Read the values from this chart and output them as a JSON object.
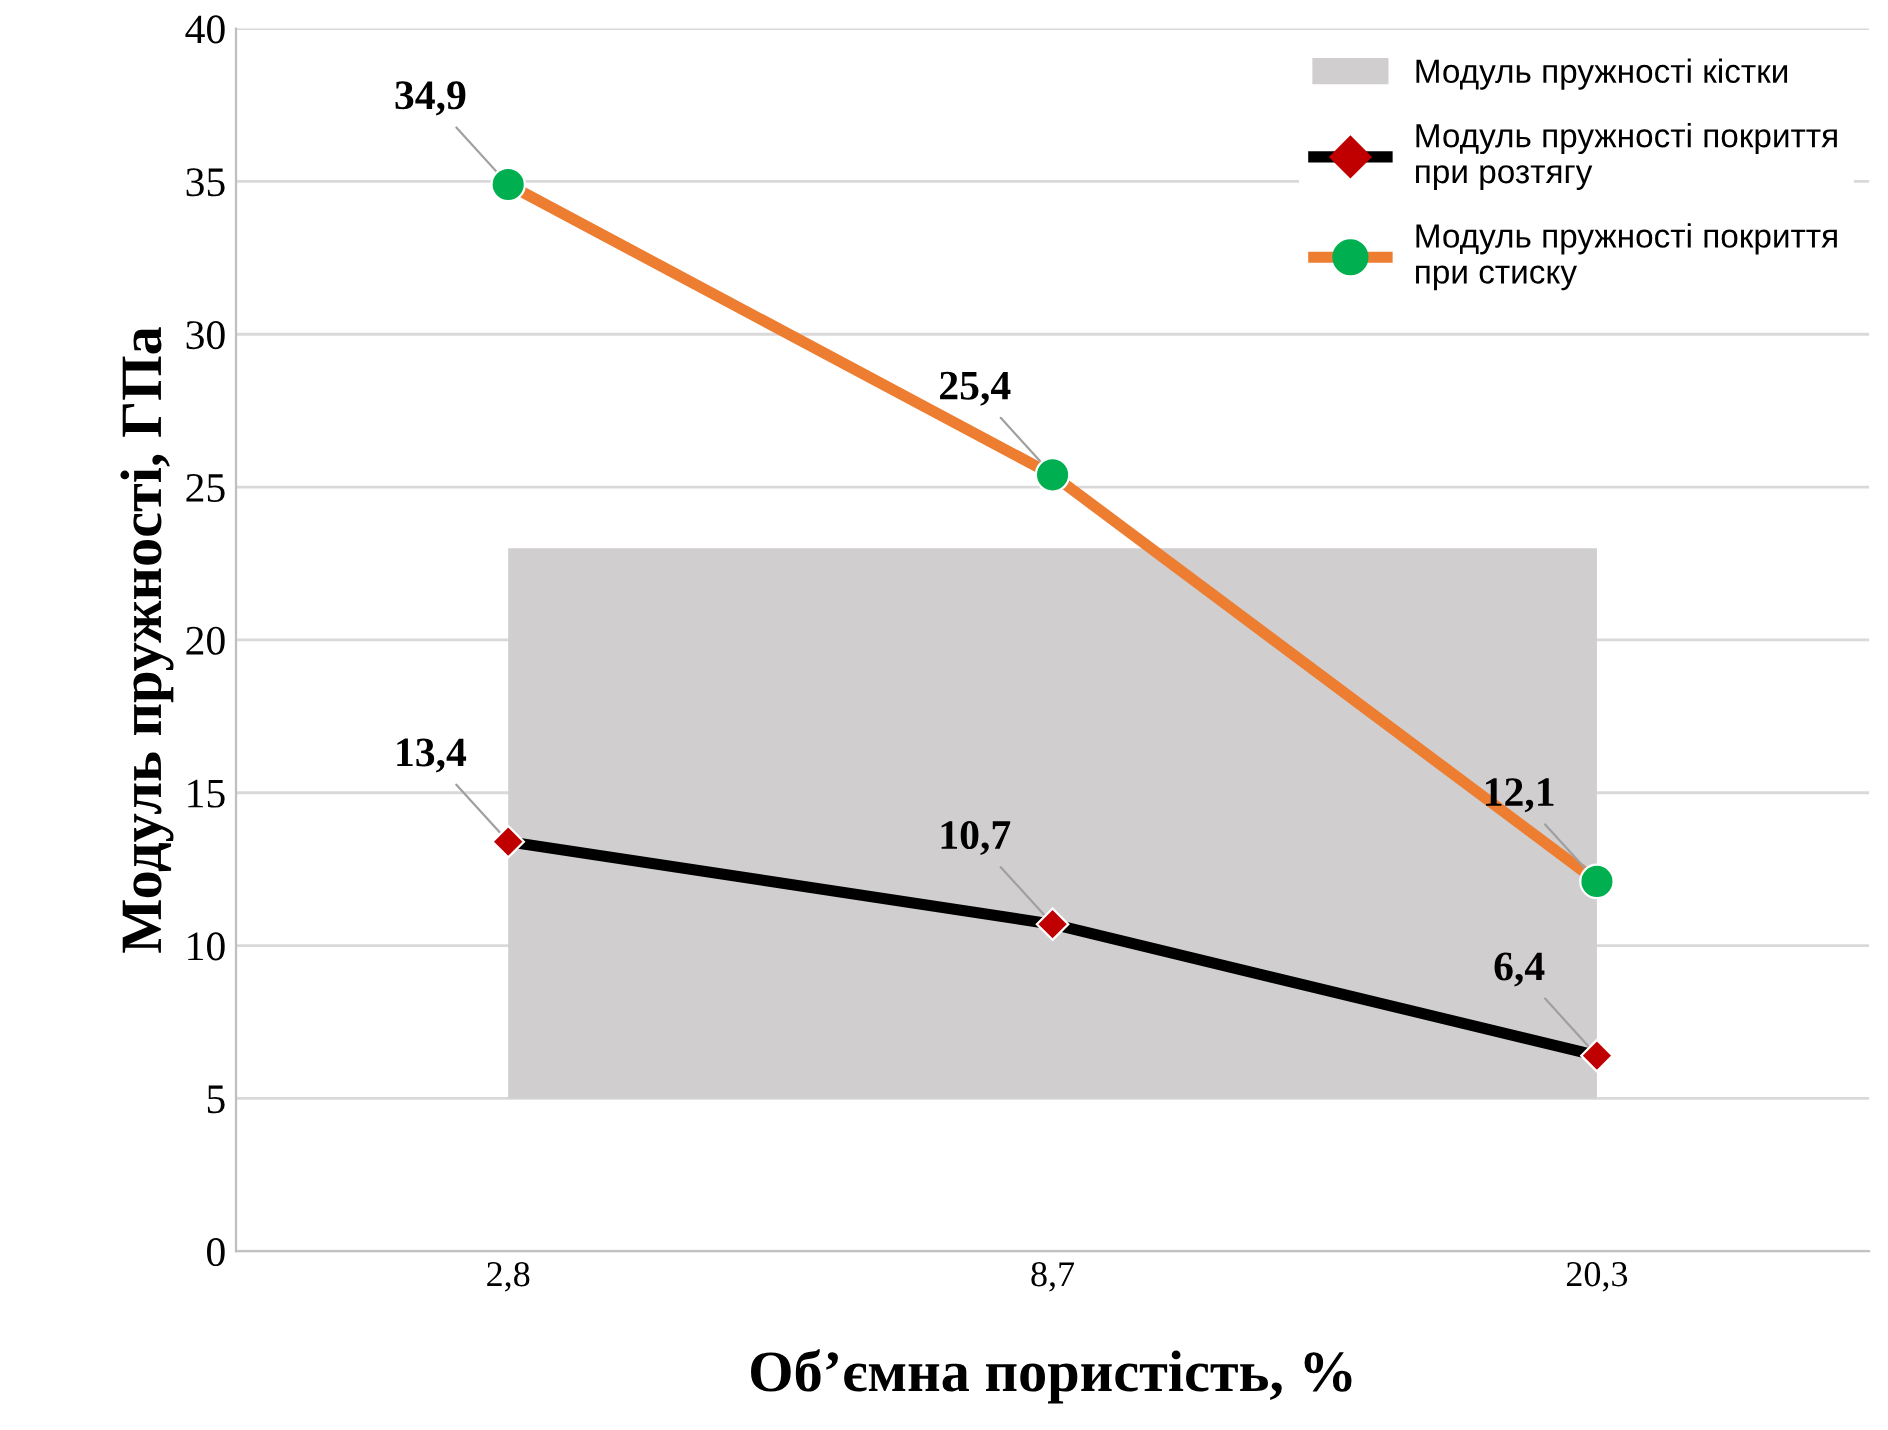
{
  "chart_data": {
    "type": "line",
    "xlabel": "Об’ємна пористість, %",
    "ylabel": "Модуль пружності, ГПа",
    "categories": [
      "2,8",
      "8,7",
      "20,3"
    ],
    "series": [
      {
        "name": "Модуль пружності покриття при розтягу",
        "color": "#000000",
        "colors": [
          "#c00000",
          "#c00000",
          "#c00000"
        ],
        "marker": "diamond",
        "values": [
          13.4,
          10.7,
          6.4
        ],
        "value_labels": [
          "13,4",
          "10,7",
          "6,4"
        ]
      },
      {
        "name": "Модуль пружності покриття при стиску",
        "color": "#ed7d31",
        "colors": [
          "#00b050",
          "#00b050",
          "#00b050"
        ],
        "marker": "circle",
        "values": [
          34.9,
          25.4,
          12.1
        ],
        "value_labels": [
          "34,9",
          "25,4",
          "12,1"
        ]
      }
    ],
    "bands": [
      {
        "axis": "y",
        "from": 5,
        "to": 23,
        "label": "Модуль пружності кістки",
        "color": "#d0cecf"
      }
    ],
    "ylim": [
      0,
      40
    ],
    "yticks": [
      0,
      5,
      10,
      15,
      20,
      25,
      30,
      35,
      40
    ],
    "grid": "y",
    "legend": "top right"
  }
}
